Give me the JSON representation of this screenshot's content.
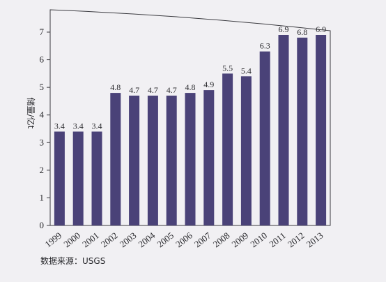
{
  "chart_data": {
    "type": "bar",
    "title": "",
    "xlabel": "",
    "ylabel": "储量/亿t",
    "categories": [
      "1999",
      "2000",
      "2001",
      "2002",
      "2003",
      "2004",
      "2005",
      "2006",
      "2007",
      "2008",
      "2009",
      "2010",
      "2011",
      "2012",
      "2013"
    ],
    "values": [
      3.4,
      3.4,
      3.4,
      4.8,
      4.7,
      4.7,
      4.7,
      4.8,
      4.9,
      5.5,
      5.4,
      6.3,
      6.9,
      6.8,
      6.9
    ],
    "ylim": [
      0,
      7
    ],
    "yticks": [
      0,
      1,
      2,
      3,
      4,
      5,
      6,
      7
    ],
    "grid": false,
    "legend": "none",
    "bar_color": "#4a4278",
    "source": "数据来源：USGS"
  }
}
